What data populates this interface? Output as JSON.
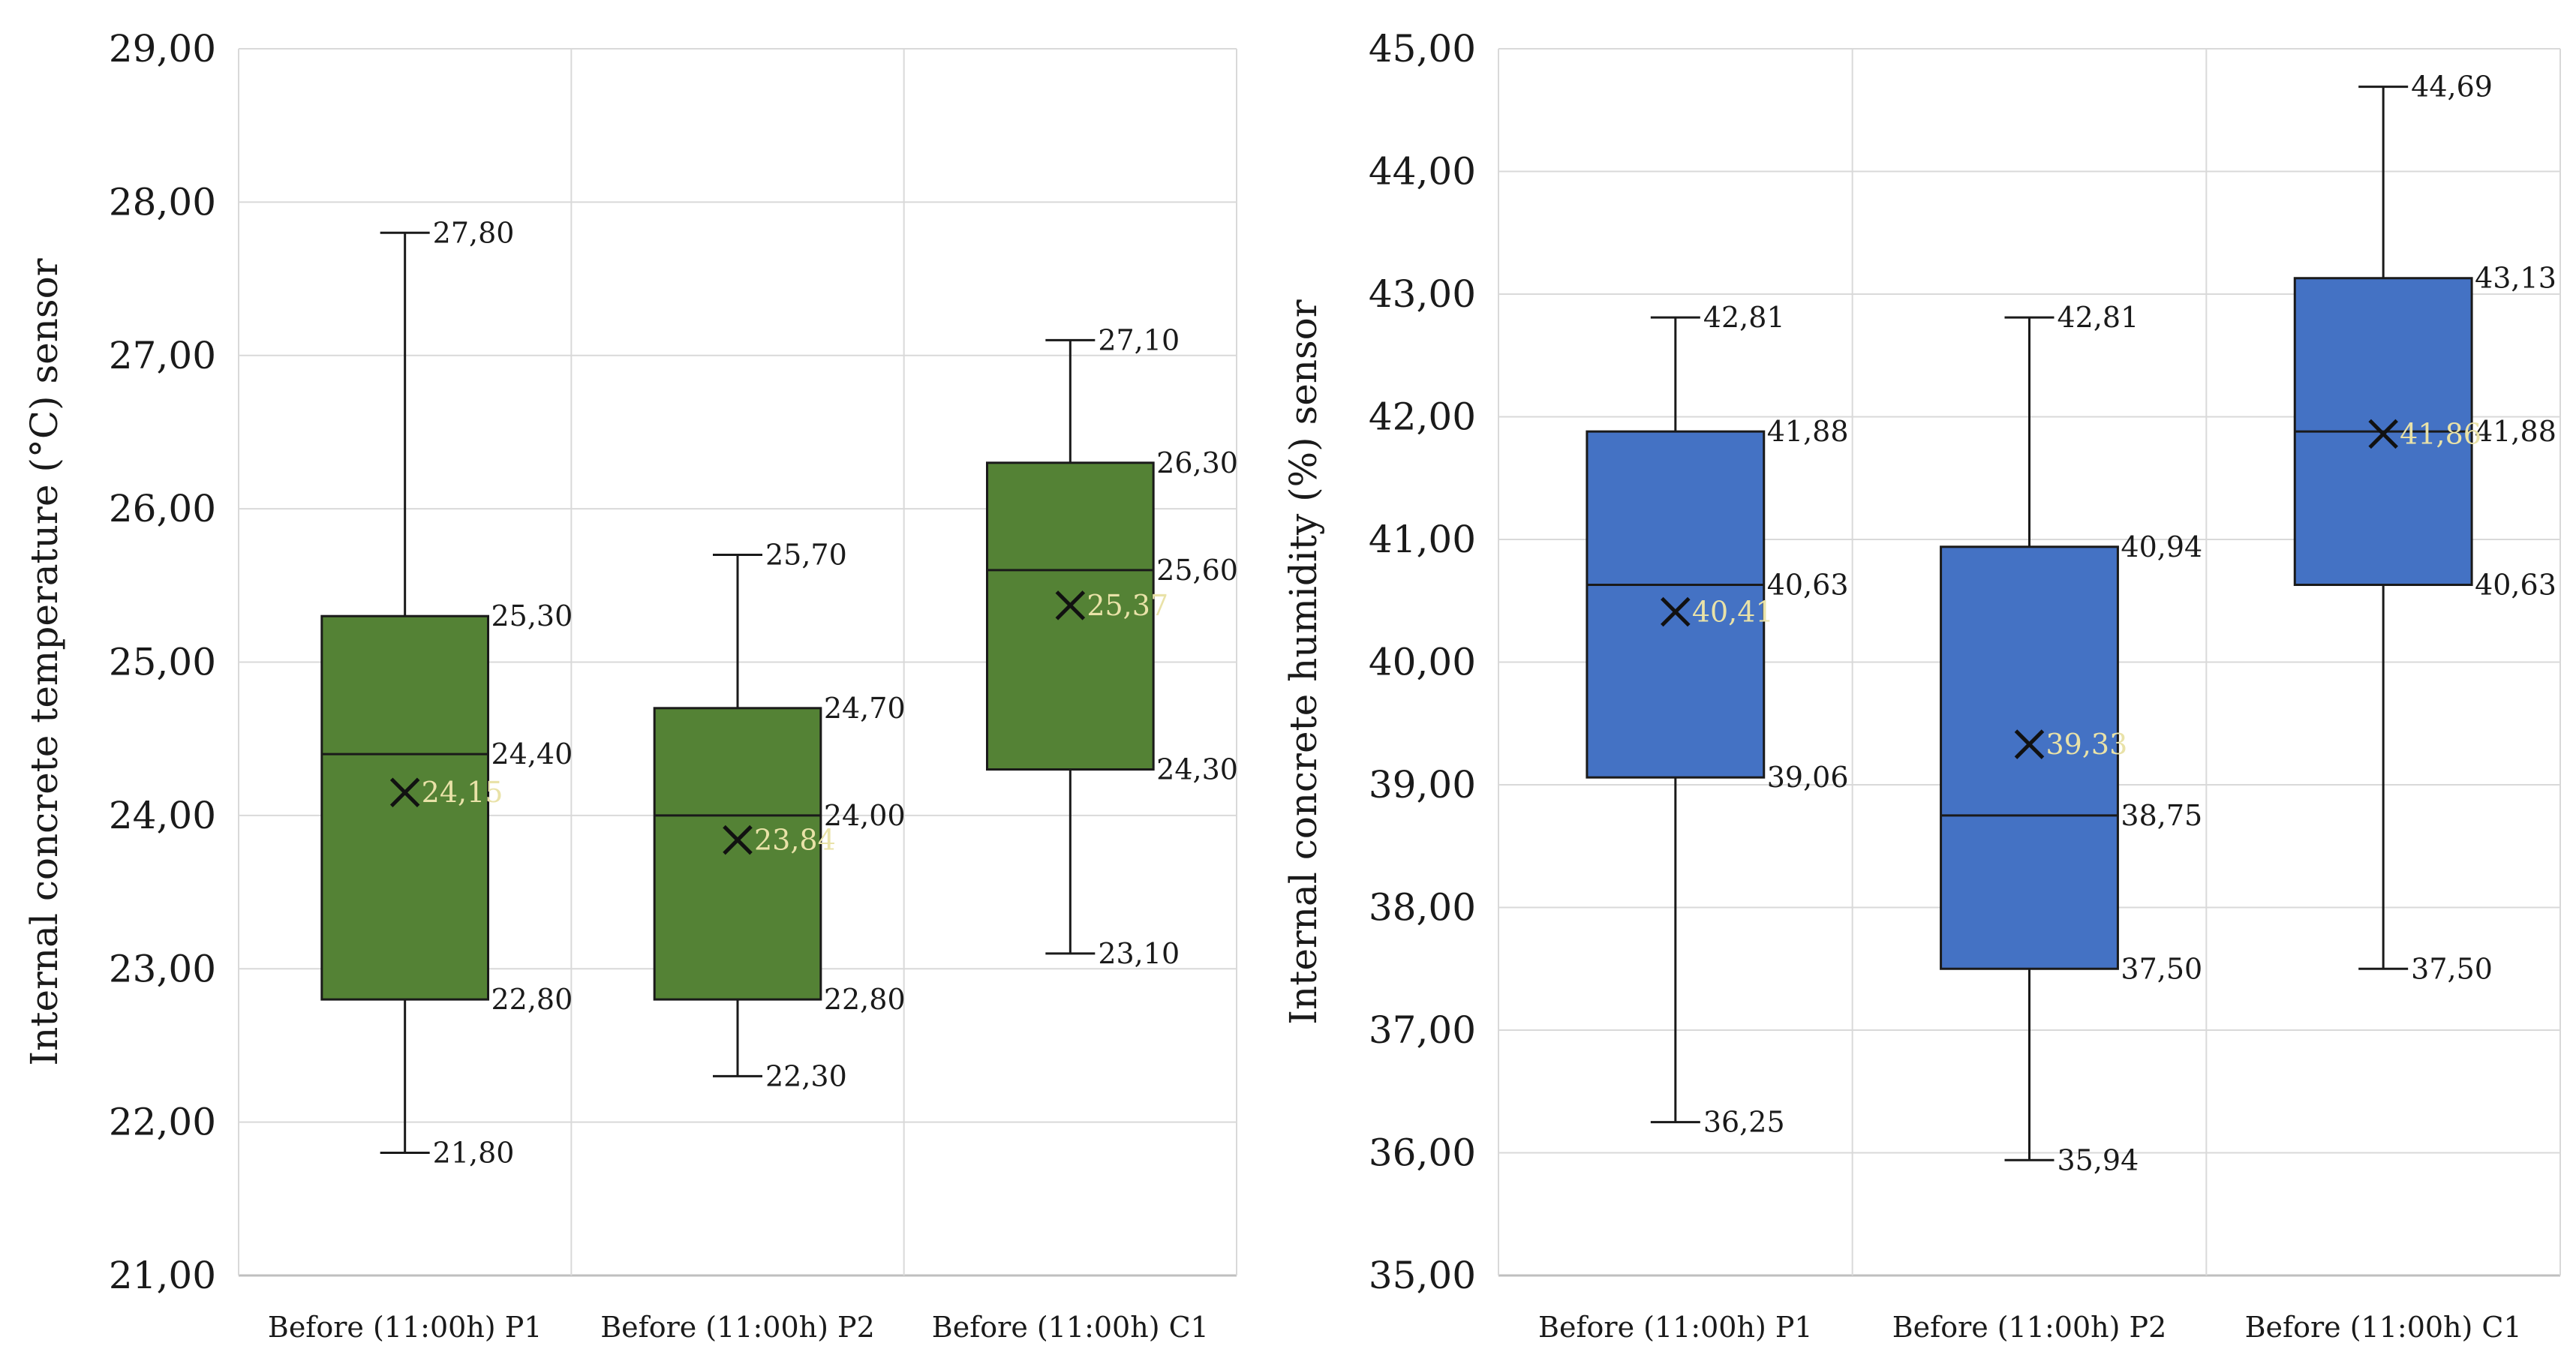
{
  "chart_data": [
    {
      "type": "box",
      "ylabel": "Internal concrete temperature (°C) sensor",
      "ylim": [
        21,
        29
      ],
      "yticks": [
        21,
        22,
        23,
        24,
        25,
        26,
        27,
        28,
        29
      ],
      "ytick_labels": [
        "21,00",
        "22,00",
        "23,00",
        "24,00",
        "25,00",
        "26,00",
        "27,00",
        "28,00",
        "29,00"
      ],
      "grid": true,
      "box_color": "#548235",
      "categories": [
        "Before (11:00h) P1",
        "Before (11:00h) P2",
        "Before (11:00h) C1"
      ],
      "boxes": [
        {
          "min": 21.8,
          "q1": 22.8,
          "median": 24.4,
          "q3": 25.3,
          "max": 27.8,
          "mean": 24.15,
          "labels": {
            "min": "21,80",
            "q1": "22,80",
            "median": "24,40",
            "q3": "25,30",
            "max": "27,80",
            "mean": "24,15"
          }
        },
        {
          "min": 22.3,
          "q1": 22.8,
          "median": 24.0,
          "q3": 24.7,
          "max": 25.7,
          "mean": 23.84,
          "labels": {
            "min": "22,30",
            "q1": "22,80",
            "median": "24,00",
            "q3": "24,70",
            "max": "25,70",
            "mean": "23,84"
          }
        },
        {
          "min": 23.1,
          "q1": 24.3,
          "median": 25.6,
          "q3": 26.3,
          "max": 27.1,
          "mean": 25.37,
          "labels": {
            "min": "23,10",
            "q1": "24,30",
            "median": "25,60",
            "q3": "26,30",
            "max": "27,10",
            "mean": "25,37"
          }
        }
      ]
    },
    {
      "type": "box",
      "ylabel": "Internal concrete humidity (%) sensor",
      "ylim": [
        35,
        45
      ],
      "yticks": [
        35,
        36,
        37,
        38,
        39,
        40,
        41,
        42,
        43,
        44,
        45
      ],
      "ytick_labels": [
        "35,00",
        "36,00",
        "37,00",
        "38,00",
        "39,00",
        "40,00",
        "41,00",
        "42,00",
        "43,00",
        "44,00",
        "45,00"
      ],
      "grid": true,
      "box_color": "#4472c4",
      "categories": [
        "Before (11:00h) P1",
        "Before (11:00h) P2",
        "Before (11:00h) C1"
      ],
      "boxes": [
        {
          "min": 36.25,
          "q1": 39.06,
          "median": 40.63,
          "q3": 41.88,
          "max": 42.81,
          "mean": 40.41,
          "labels": {
            "min": "36,25",
            "q1": "39,06",
            "median": "40,63",
            "q3": "41,88",
            "max": "42,81",
            "mean": "40,41"
          }
        },
        {
          "min": 35.94,
          "q1": 37.5,
          "median": 38.75,
          "q3": 40.94,
          "max": 42.81,
          "mean": 39.33,
          "labels": {
            "min": "35,94",
            "q1": "37,50",
            "median": "38,75",
            "q3": "40,94",
            "max": "42,81",
            "mean": "39,33"
          }
        },
        {
          "min": 37.5,
          "q1": 40.63,
          "median": 41.88,
          "q3": 43.13,
          "max": 44.69,
          "mean": 41.86,
          "labels": {
            "min": "37,50",
            "q1": "40,63",
            "median": "41,88",
            "q3": "43,13",
            "max": "44,69",
            "mean": "41,86"
          }
        }
      ]
    }
  ]
}
